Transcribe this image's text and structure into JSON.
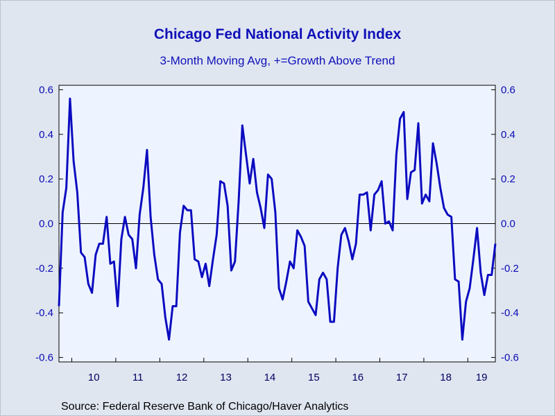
{
  "title": "Chicago Fed National Activity Index",
  "subtitle": "3-Month Moving Avg, +=Growth Above Trend",
  "source": "Source:  Federal Reserve Bank of Chicago/Haver Analytics",
  "colors": {
    "line": "#0b0bc0",
    "plot_background": "#eef4ff",
    "page_background": "#dfe6f0",
    "text": "#1010b8"
  },
  "chart_data": {
    "type": "line",
    "x_start": "2009-09",
    "frequency": "monthly",
    "ylim": [
      -0.62,
      0.62
    ],
    "y_ticks": [
      "0.6",
      "0.4",
      "0.2",
      "0.0",
      "-0.2",
      "-0.4",
      "-0.6"
    ],
    "x_tick_labels": [
      "10",
      "11",
      "12",
      "13",
      "14",
      "15",
      "16",
      "17",
      "18",
      "19"
    ],
    "axes": "left and right, mirrored",
    "zero_line": true,
    "series": [
      {
        "values": [
          -0.37,
          0.05,
          0.16,
          0.56,
          0.28,
          0.14,
          -0.13,
          -0.15,
          -0.27,
          -0.31,
          -0.14,
          -0.09,
          -0.09,
          0.03,
          -0.18,
          -0.17,
          -0.37,
          -0.07,
          0.03,
          -0.05,
          -0.07,
          -0.2,
          0.04,
          0.16,
          0.33,
          0.03,
          -0.14,
          -0.25,
          -0.27,
          -0.42,
          -0.52,
          -0.37,
          -0.37,
          -0.04,
          0.08,
          0.06,
          0.06,
          -0.16,
          -0.17,
          -0.24,
          -0.18,
          -0.28,
          -0.16,
          -0.05,
          0.19,
          0.18,
          0.08,
          -0.21,
          -0.17,
          0.1,
          0.44,
          0.31,
          0.18,
          0.29,
          0.14,
          0.07,
          -0.02,
          0.22,
          0.2,
          0.05,
          -0.29,
          -0.34,
          -0.26,
          -0.17,
          -0.2,
          -0.03,
          -0.06,
          -0.1,
          -0.35,
          -0.38,
          -0.41,
          -0.25,
          -0.22,
          -0.25,
          -0.44,
          -0.44,
          -0.2,
          -0.05,
          -0.02,
          -0.08,
          -0.16,
          -0.09,
          0.13,
          0.13,
          0.14,
          -0.03,
          0.13,
          0.15,
          0.19,
          0.0,
          0.01,
          -0.03,
          0.31,
          0.47,
          0.5,
          0.11,
          0.23,
          0.24,
          0.45,
          0.09,
          0.13,
          0.1,
          0.36,
          0.27,
          0.16,
          0.07,
          0.04,
          0.03,
          -0.25,
          -0.26,
          -0.52,
          -0.35,
          -0.29,
          -0.16,
          -0.02,
          -0.22,
          -0.32,
          -0.23,
          -0.23,
          -0.09
        ]
      }
    ]
  }
}
